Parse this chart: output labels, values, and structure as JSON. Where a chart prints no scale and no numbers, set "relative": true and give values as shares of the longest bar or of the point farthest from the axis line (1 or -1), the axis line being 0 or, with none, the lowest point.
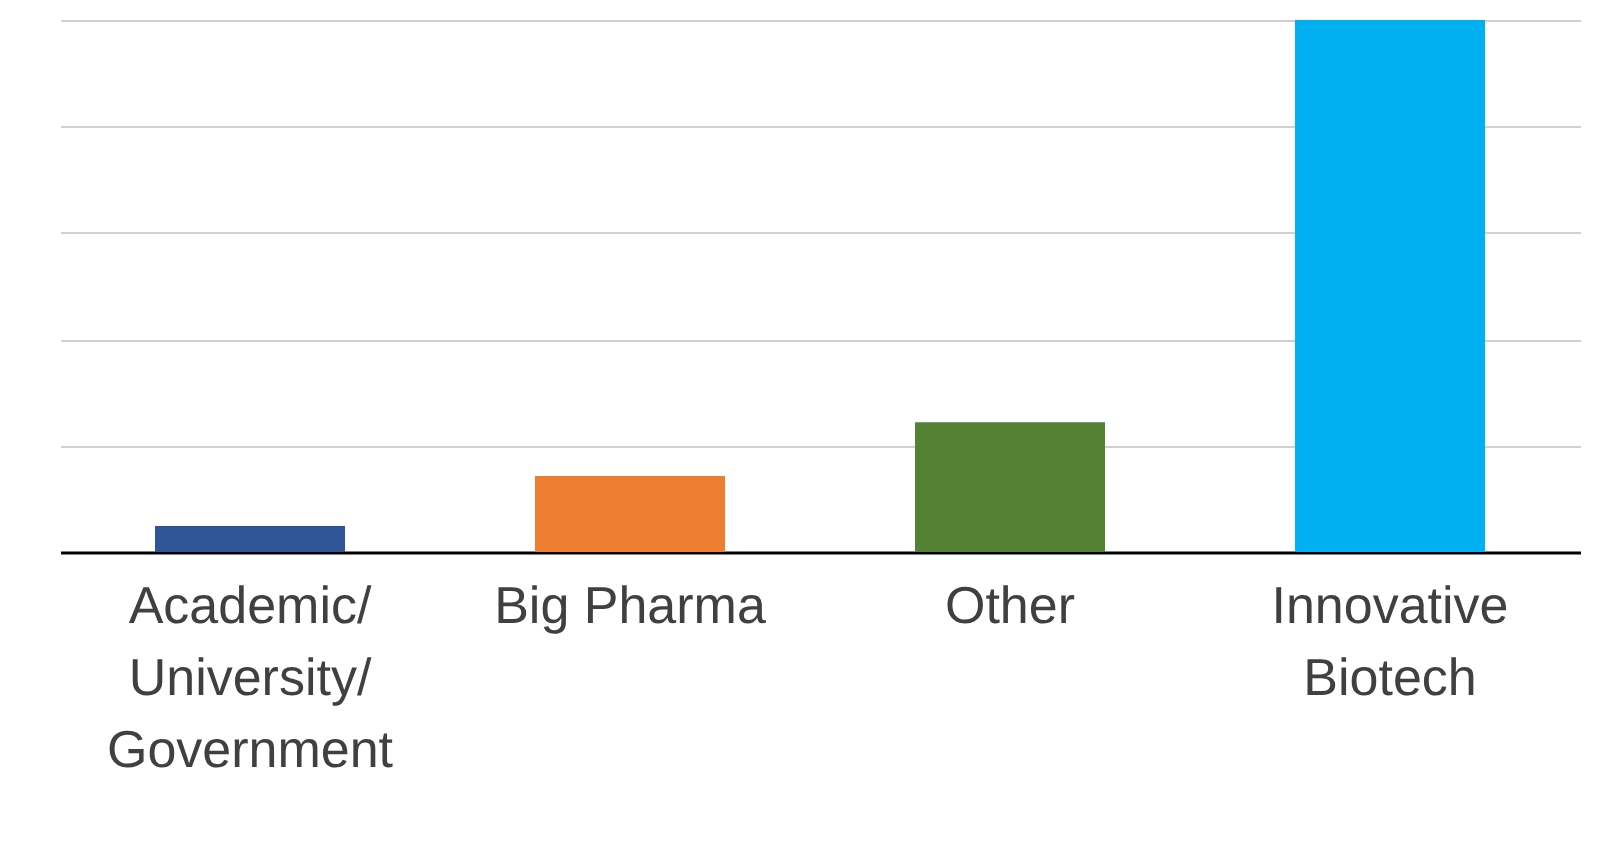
{
  "chart_data": {
    "type": "bar",
    "relative": true,
    "grid": "y",
    "categories": [
      "Academic/University/Government",
      "Big Pharma",
      "Other",
      "Innovative Biotech"
    ],
    "values": [
      0.049,
      0.143,
      0.244,
      1
    ],
    "colors": [
      "#2f5597",
      "#ed7d31",
      "#548235",
      "#00b0f0"
    ]
  }
}
